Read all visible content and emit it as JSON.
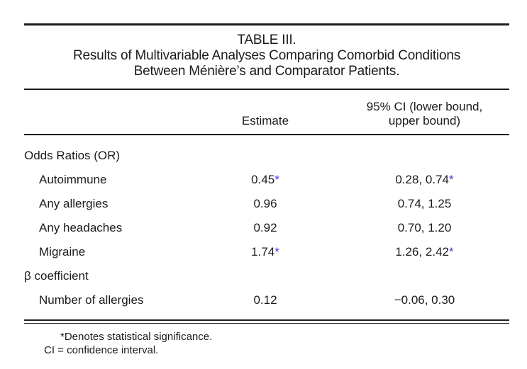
{
  "accent": {
    "significance_color": "#3b3bef",
    "text_color": "#1b1b1b",
    "rule_color": "#1c1c1c"
  },
  "table": {
    "label": "TABLE III.",
    "title_line1": "Results of Multivariable Analyses Comparing Comorbid Conditions",
    "title_line2": "Between Ménière’s and Comparator Patients.",
    "columns": {
      "row_label": "",
      "estimate": "Estimate",
      "ci_line1": "95% CI (lower bound,",
      "ci_line2": "upper bound)"
    },
    "significance_marker": "*",
    "sections": [
      {
        "header": "Odds Ratios (OR)",
        "rows": [
          {
            "label": "Autoimmune",
            "estimate": "0.45",
            "est_star": "*",
            "ci": "0.28, 0.74",
            "ci_star": "*"
          },
          {
            "label": "Any allergies",
            "estimate": "0.96",
            "est_star": "",
            "ci": "0.74, 1.25",
            "ci_star": ""
          },
          {
            "label": "Any headaches",
            "estimate": "0.92",
            "est_star": "",
            "ci": "0.70, 1.20",
            "ci_star": ""
          },
          {
            "label": "Migraine",
            "estimate": "1.74",
            "est_star": "*",
            "ci": "1.26, 2.42",
            "ci_star": "*"
          }
        ]
      },
      {
        "header": "β coefficient",
        "rows": [
          {
            "label": "Number of allergies",
            "estimate": "0.12",
            "est_star": "",
            "ci": "−0.06, 0.30",
            "ci_star": ""
          }
        ]
      }
    ],
    "footnotes": [
      "*Denotes statistical significance.",
      "CI = confidence interval."
    ]
  }
}
